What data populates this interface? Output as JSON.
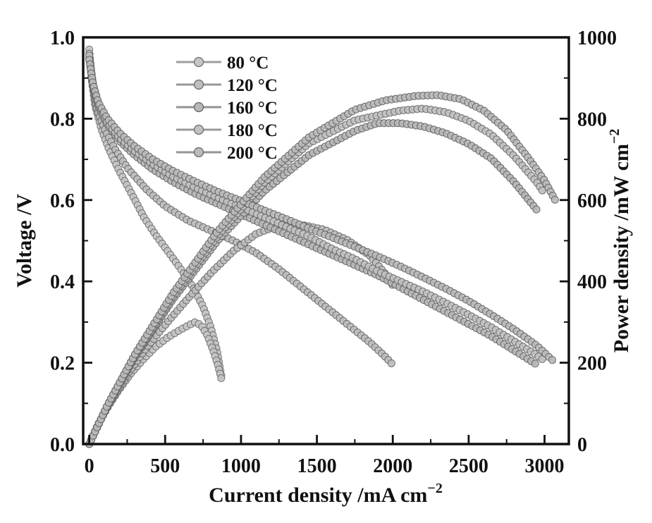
{
  "figure": {
    "background": "#ffffff",
    "text_color": "#111111",
    "axis_color": "#111111"
  },
  "axes": {
    "xlabel": {
      "base": "Current density /mA cm",
      "sup": "−2",
      "full": "Current density /mA cm⁻²"
    },
    "left_ylabel": {
      "base": "Voltage /V",
      "sup": "",
      "full": "Voltage /V"
    },
    "right_ylabel": {
      "base": "Power density /mW cm",
      "sup": "−2",
      "full": "Power density /mW cm⁻²"
    },
    "x_major_ticks": [
      0,
      500,
      1000,
      1500,
      2000,
      2500,
      3000
    ],
    "x_minor_ticks": [
      250,
      750,
      1250,
      1750,
      2250,
      2750
    ],
    "x_range_mA": [
      -40,
      3160
    ],
    "left_major_ticks": [
      "0.0",
      "0.2",
      "0.4",
      "0.6",
      "0.8",
      "1.0"
    ],
    "left_minor_ticks": [
      0.1,
      0.3,
      0.5,
      0.7,
      0.9
    ],
    "left_range_V": [
      0,
      1.0
    ],
    "right_major_ticks": [
      "0",
      "200",
      "400",
      "600",
      "800",
      "1000"
    ],
    "right_minor_ticks": [
      100,
      300,
      500,
      700,
      900
    ],
    "right_range_mW": [
      0,
      1000
    ]
  },
  "legend": {
    "position": "upper-left-inside",
    "items": [
      {
        "label": "80 °C",
        "marker": "circle",
        "line_color": "#949494",
        "marker_fill": "#c6c6c6",
        "marker_edge": "#6f6f6f"
      },
      {
        "label": "120 °C",
        "marker": "circle",
        "line_color": "#8d8d8d",
        "marker_fill": "#bfbfbf",
        "marker_edge": "#696969"
      },
      {
        "label": "160 °C",
        "marker": "circle",
        "line_color": "#888888",
        "marker_fill": "#b8b8b8",
        "marker_edge": "#646464"
      },
      {
        "label": "180 °C",
        "marker": "circle",
        "line_color": "#909090",
        "marker_fill": "#c2c2c2",
        "marker_edge": "#6c6c6c"
      },
      {
        "label": "200 °C",
        "marker": "circle",
        "line_color": "#8a8a8a",
        "marker_fill": "#bbbbbb",
        "marker_edge": "#666666"
      }
    ]
  },
  "chart_data": {
    "type": "line",
    "title": "",
    "xlabel": "Current density /mA cm⁻²",
    "ylabel_left": "Voltage /V",
    "ylabel_right": "Power density /mW cm⁻²",
    "xlim": [
      0,
      3160
    ],
    "ylim_left": [
      0,
      1.0
    ],
    "ylim_right": [
      0,
      1000
    ],
    "grid": false,
    "legend_position": "upper left inside, no frame",
    "series": [
      {
        "id": "80C-voltage",
        "name": "80 °C voltage",
        "axis": "left",
        "line_color": "#949494",
        "marker_fill": "#c6c6c6",
        "marker_edge": "#6f6f6f",
        "points": [
          [
            0,
            0.97
          ],
          [
            15,
            0.9
          ],
          [
            40,
            0.83
          ],
          [
            80,
            0.775
          ],
          [
            130,
            0.725
          ],
          [
            200,
            0.67
          ],
          [
            280,
            0.615
          ],
          [
            360,
            0.558
          ],
          [
            440,
            0.513
          ],
          [
            520,
            0.473
          ],
          [
            600,
            0.432
          ],
          [
            680,
            0.388
          ],
          [
            750,
            0.338
          ],
          [
            800,
            0.288
          ],
          [
            840,
            0.232
          ],
          [
            870,
            0.168
          ]
        ]
      },
      {
        "id": "80C-power",
        "name": "80 °C power",
        "axis": "right",
        "line_color": "#949494",
        "marker_fill": "#c6c6c6",
        "marker_edge": "#6f6f6f",
        "points": [
          [
            0,
            0
          ],
          [
            60,
            50
          ],
          [
            130,
            96
          ],
          [
            200,
            136
          ],
          [
            280,
            176
          ],
          [
            360,
            210
          ],
          [
            440,
            240
          ],
          [
            520,
            263
          ],
          [
            600,
            281
          ],
          [
            660,
            293
          ],
          [
            700,
            300
          ],
          [
            740,
            291
          ],
          [
            780,
            266
          ],
          [
            820,
            227
          ],
          [
            850,
            192
          ],
          [
            870,
            161
          ]
        ]
      },
      {
        "id": "120C-voltage",
        "name": "120 °C voltage",
        "axis": "left",
        "line_color": "#8d8d8d",
        "marker_fill": "#bfbfbf",
        "marker_edge": "#696969",
        "points": [
          [
            0,
            0.96
          ],
          [
            20,
            0.885
          ],
          [
            50,
            0.825
          ],
          [
            100,
            0.775
          ],
          [
            170,
            0.725
          ],
          [
            260,
            0.675
          ],
          [
            380,
            0.625
          ],
          [
            500,
            0.585
          ],
          [
            650,
            0.55
          ],
          [
            800,
            0.525
          ],
          [
            950,
            0.5
          ],
          [
            1100,
            0.47
          ],
          [
            1250,
            0.43
          ],
          [
            1400,
            0.385
          ],
          [
            1550,
            0.34
          ],
          [
            1700,
            0.295
          ],
          [
            1850,
            0.25
          ],
          [
            1950,
            0.215
          ],
          [
            2000,
            0.195
          ]
        ]
      },
      {
        "id": "120C-power",
        "name": "120 °C power",
        "axis": "right",
        "line_color": "#8d8d8d",
        "marker_fill": "#bfbfbf",
        "marker_edge": "#696969",
        "points": [
          [
            0,
            0
          ],
          [
            100,
            78
          ],
          [
            260,
            176
          ],
          [
            380,
            238
          ],
          [
            500,
            293
          ],
          [
            650,
            358
          ],
          [
            800,
            420
          ],
          [
            950,
            475
          ],
          [
            1100,
            517
          ],
          [
            1250,
            538
          ],
          [
            1400,
            539
          ],
          [
            1550,
            527
          ],
          [
            1700,
            502
          ],
          [
            1850,
            463
          ],
          [
            1950,
            419
          ],
          [
            2000,
            390
          ]
        ]
      },
      {
        "id": "160C-voltage",
        "name": "160 °C voltage",
        "axis": "left",
        "line_color": "#888888",
        "marker_fill": "#b8b8b8",
        "marker_edge": "#646464",
        "points": [
          [
            0,
            0.95
          ],
          [
            25,
            0.88
          ],
          [
            60,
            0.83
          ],
          [
            120,
            0.785
          ],
          [
            200,
            0.745
          ],
          [
            300,
            0.71
          ],
          [
            420,
            0.675
          ],
          [
            550,
            0.645
          ],
          [
            700,
            0.615
          ],
          [
            850,
            0.59
          ],
          [
            1000,
            0.565
          ],
          [
            1150,
            0.54
          ],
          [
            1300,
            0.515
          ],
          [
            1450,
            0.49
          ],
          [
            1600,
            0.465
          ],
          [
            1750,
            0.44
          ],
          [
            1900,
            0.415
          ],
          [
            2050,
            0.385
          ],
          [
            2200,
            0.355
          ],
          [
            2350,
            0.325
          ],
          [
            2500,
            0.295
          ],
          [
            2650,
            0.265
          ],
          [
            2800,
            0.23
          ],
          [
            2950,
            0.195
          ]
        ]
      },
      {
        "id": "160C-power",
        "name": "160 °C power",
        "axis": "right",
        "line_color": "#888888",
        "marker_fill": "#b8b8b8",
        "marker_edge": "#646464",
        "points": [
          [
            0,
            0
          ],
          [
            120,
            94
          ],
          [
            300,
            213
          ],
          [
            550,
            355
          ],
          [
            850,
            502
          ],
          [
            1150,
            621
          ],
          [
            1450,
            711
          ],
          [
            1750,
            770
          ],
          [
            1900,
            789
          ],
          [
            2050,
            789
          ],
          [
            2200,
            781
          ],
          [
            2350,
            764
          ],
          [
            2500,
            738
          ],
          [
            2650,
            702
          ],
          [
            2800,
            644
          ],
          [
            2950,
            575
          ]
        ]
      },
      {
        "id": "180C-voltage",
        "name": "180 °C voltage",
        "axis": "left",
        "line_color": "#909090",
        "marker_fill": "#c2c2c2",
        "marker_edge": "#6c6c6c",
        "points": [
          [
            0,
            0.955
          ],
          [
            25,
            0.885
          ],
          [
            60,
            0.835
          ],
          [
            120,
            0.79
          ],
          [
            200,
            0.753
          ],
          [
            300,
            0.72
          ],
          [
            420,
            0.688
          ],
          [
            550,
            0.658
          ],
          [
            700,
            0.63
          ],
          [
            850,
            0.605
          ],
          [
            1000,
            0.582
          ],
          [
            1150,
            0.558
          ],
          [
            1300,
            0.534
          ],
          [
            1450,
            0.51
          ],
          [
            1600,
            0.48
          ],
          [
            1750,
            0.455
          ],
          [
            1900,
            0.425
          ],
          [
            2050,
            0.4
          ],
          [
            2200,
            0.375
          ],
          [
            2350,
            0.347
          ],
          [
            2500,
            0.318
          ],
          [
            2650,
            0.287
          ],
          [
            2800,
            0.253
          ],
          [
            2950,
            0.218
          ],
          [
            3000,
            0.205
          ]
        ]
      },
      {
        "id": "180C-power",
        "name": "180 °C power",
        "axis": "right",
        "line_color": "#909090",
        "marker_fill": "#c2c2c2",
        "marker_edge": "#6c6c6c",
        "points": [
          [
            0,
            0
          ],
          [
            120,
            95
          ],
          [
            300,
            216
          ],
          [
            550,
            362
          ],
          [
            850,
            514
          ],
          [
            1150,
            642
          ],
          [
            1450,
            740
          ],
          [
            1600,
            768
          ],
          [
            1750,
            796
          ],
          [
            1900,
            808
          ],
          [
            2050,
            820
          ],
          [
            2200,
            825
          ],
          [
            2350,
            816
          ],
          [
            2500,
            795
          ],
          [
            2650,
            761
          ],
          [
            2800,
            708
          ],
          [
            2950,
            643
          ],
          [
            3000,
            615
          ]
        ]
      },
      {
        "id": "200C-voltage",
        "name": "200 °C voltage",
        "axis": "left",
        "line_color": "#8a8a8a",
        "marker_fill": "#bbbbbb",
        "marker_edge": "#666666",
        "points": [
          [
            0,
            0.945
          ],
          [
            25,
            0.885
          ],
          [
            60,
            0.84
          ],
          [
            120,
            0.8
          ],
          [
            200,
            0.765
          ],
          [
            300,
            0.732
          ],
          [
            420,
            0.7
          ],
          [
            550,
            0.672
          ],
          [
            700,
            0.645
          ],
          [
            850,
            0.62
          ],
          [
            1000,
            0.598
          ],
          [
            1150,
            0.575
          ],
          [
            1300,
            0.553
          ],
          [
            1450,
            0.53
          ],
          [
            1600,
            0.508
          ],
          [
            1750,
            0.485
          ],
          [
            1900,
            0.462
          ],
          [
            2050,
            0.437
          ],
          [
            2200,
            0.41
          ],
          [
            2350,
            0.382
          ],
          [
            2500,
            0.352
          ],
          [
            2650,
            0.318
          ],
          [
            2800,
            0.282
          ],
          [
            2950,
            0.242
          ],
          [
            3070,
            0.2
          ]
        ]
      },
      {
        "id": "200C-power",
        "name": "200 °C power",
        "axis": "right",
        "line_color": "#8a8a8a",
        "marker_fill": "#bbbbbb",
        "marker_edge": "#666666",
        "points": [
          [
            0,
            0
          ],
          [
            120,
            96
          ],
          [
            300,
            220
          ],
          [
            550,
            370
          ],
          [
            850,
            525
          ],
          [
            1150,
            655
          ],
          [
            1450,
            755
          ],
          [
            1750,
            822
          ],
          [
            1950,
            845
          ],
          [
            2150,
            856
          ],
          [
            2300,
            858
          ],
          [
            2450,
            848
          ],
          [
            2600,
            820
          ],
          [
            2750,
            772
          ],
          [
            2900,
            700
          ],
          [
            3000,
            648
          ],
          [
            3070,
            600
          ]
        ]
      }
    ]
  }
}
